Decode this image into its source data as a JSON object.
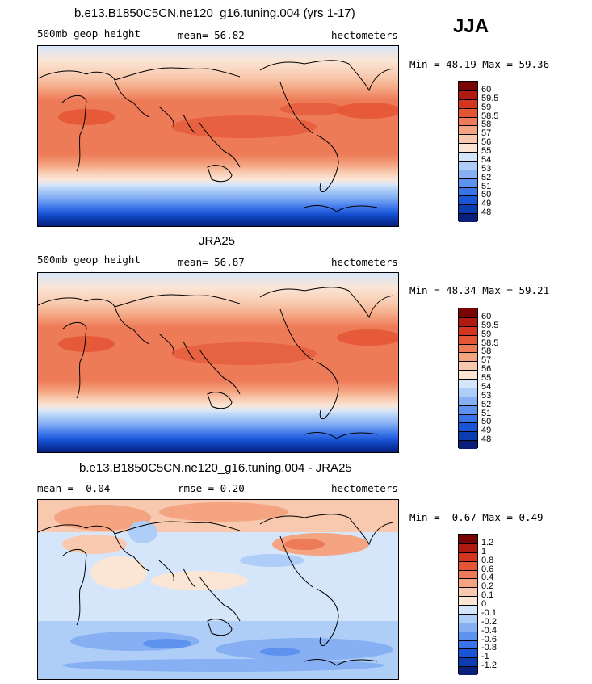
{
  "season": "JJA",
  "panels": [
    {
      "title": "b.e13.B1850C5CN.ne120_g16.tuning.004 (yrs 1-17)",
      "left_label": "500mb geop height",
      "mid_label": "mean=  56.82",
      "units": "hectometers",
      "minmax": "Min =  48.19 Max =  59.36",
      "legend_colors": [
        "#0a1f7a",
        "#0b3cb0",
        "#1a55d6",
        "#3a73e8",
        "#5e92ef",
        "#86b0f3",
        "#aecdf7",
        "#d6e6fa",
        "#fbe6d6",
        "#f8c9ae",
        "#f4a481",
        "#ee7b58",
        "#e45535",
        "#d5351f",
        "#b11a10",
        "#7a0404"
      ],
      "legend_labels": [
        "48",
        "49",
        "50",
        "51",
        "52",
        "53",
        "54",
        "55",
        "56",
        "57",
        "58",
        "58.5",
        "59",
        "59.5",
        "60"
      ]
    },
    {
      "title": "JRA25",
      "left_label": "500mb geop height",
      "mid_label": "mean=  56.87",
      "units": "hectometers",
      "minmax": "Min =  48.34 Max =  59.21",
      "legend_colors": [
        "#0a1f7a",
        "#0b3cb0",
        "#1a55d6",
        "#3a73e8",
        "#5e92ef",
        "#86b0f3",
        "#aecdf7",
        "#d6e6fa",
        "#fbe6d6",
        "#f8c9ae",
        "#f4a481",
        "#ee7b58",
        "#e45535",
        "#d5351f",
        "#b11a10",
        "#7a0404"
      ],
      "legend_labels": [
        "48",
        "49",
        "50",
        "51",
        "52",
        "53",
        "54",
        "55",
        "56",
        "57",
        "58",
        "58.5",
        "59",
        "59.5",
        "60"
      ]
    },
    {
      "title": "b.e13.B1850C5CN.ne120_g16.tuning.004 - JRA25",
      "left_label": "mean =  -0.04",
      "mid_label": "rmse =   0.20",
      "units": "hectometers",
      "minmax": "Min =  -0.67 Max =   0.49",
      "legend_colors": [
        "#0a1f7a",
        "#0b3cb0",
        "#1a55d6",
        "#3a73e8",
        "#5e92ef",
        "#86b0f3",
        "#aecdf7",
        "#d6e6fa",
        "#fbe6d6",
        "#f8c9ae",
        "#f4a481",
        "#ee7b58",
        "#e45535",
        "#d5351f",
        "#b11a10",
        "#7a0404"
      ],
      "legend_labels": [
        "-1.2",
        "-1",
        "-0.8",
        "-0.6",
        "-0.4",
        "-0.2",
        "-0.1",
        "0",
        "0.1",
        "0.2",
        "0.4",
        "0.6",
        "0.8",
        "1",
        "1.2"
      ]
    }
  ]
}
